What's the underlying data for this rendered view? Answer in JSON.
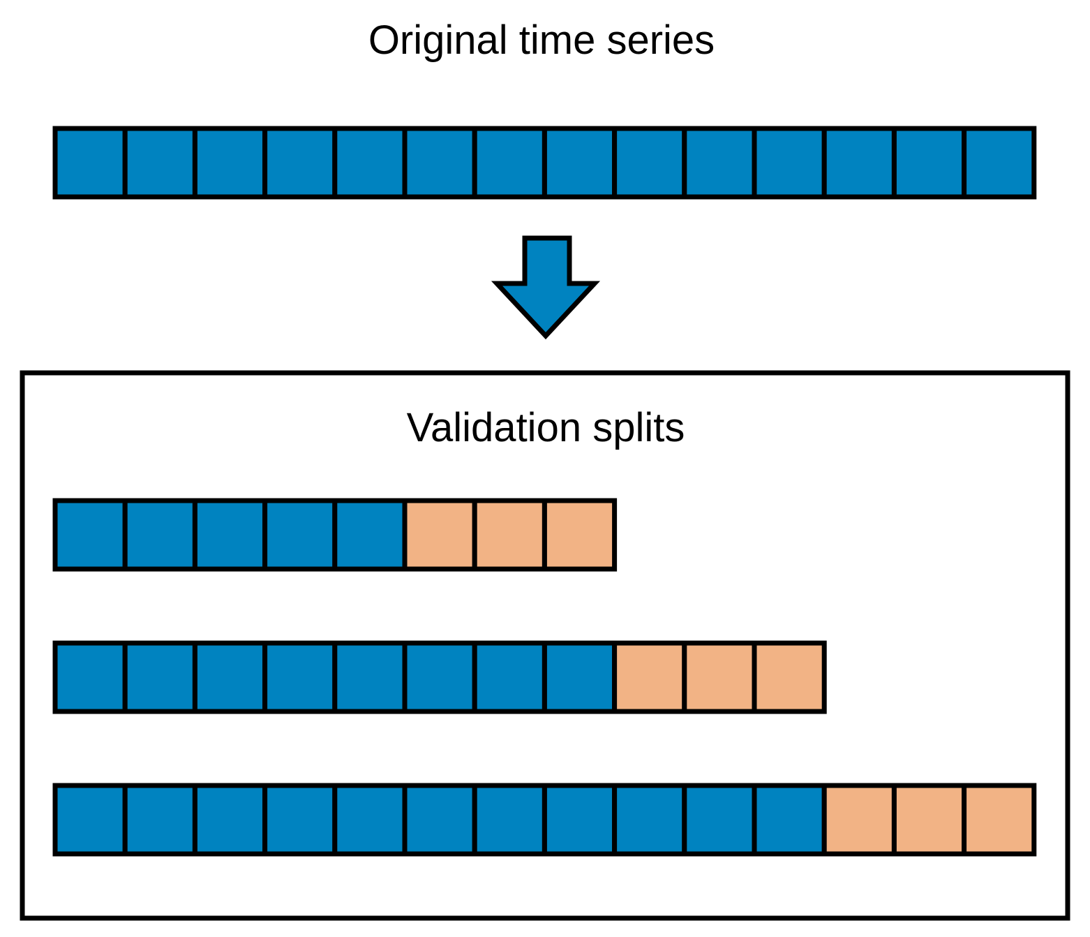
{
  "title": "Original time series",
  "colors": {
    "train": "#0083c0",
    "test": "#f2b385",
    "stroke": "#000000"
  },
  "original_series": {
    "cells": 14,
    "type": "train"
  },
  "arrow": {
    "icon": "down-arrow-icon",
    "color": "#0083c0"
  },
  "validation": {
    "title": "Validation splits",
    "splits": [
      {
        "train": 5,
        "test": 3
      },
      {
        "train": 8,
        "test": 3
      },
      {
        "train": 11,
        "test": 3
      }
    ]
  }
}
